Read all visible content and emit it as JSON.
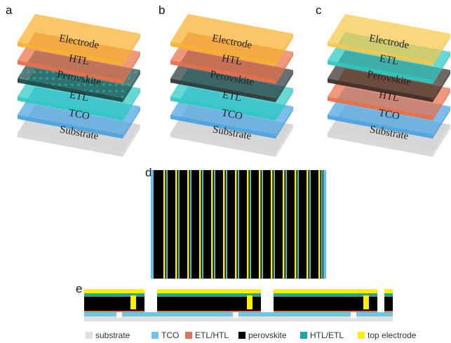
{
  "panels": [
    {
      "letter": "a",
      "layers": [
        "Substrate",
        "TCO",
        "ETL",
        "Perovskite",
        "HTL",
        "Electrode"
      ]
    },
    {
      "letter": "b",
      "layers": [
        "Substrate",
        "TCO",
        "ETL",
        "Perovskite",
        "HTL",
        "Electrode"
      ]
    },
    {
      "letter": "c",
      "layers": [
        "Substrate",
        "TCO",
        "HTL",
        "Perovskite",
        "ETL",
        "Electrode"
      ]
    }
  ],
  "panel_d": {
    "letter": "d"
  },
  "panel_e": {
    "letter": "e",
    "legend": [
      "substrate",
      "TCO",
      "ETL/HTL",
      "perovskite",
      "HTL/ETL",
      "top electrode"
    ]
  }
}
